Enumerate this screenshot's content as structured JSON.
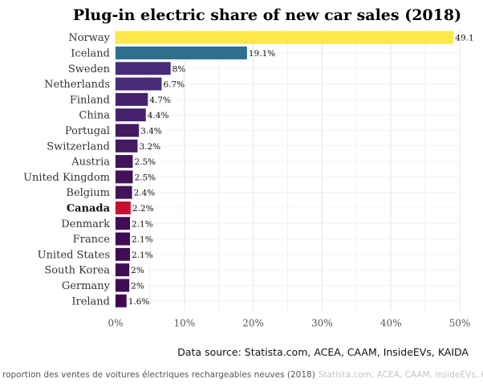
{
  "chart_data": {
    "type": "bar",
    "orientation": "horizontal",
    "title": "Plug-in electric share of new car sales (2018)",
    "categories": [
      "Norway",
      "Iceland",
      "Sweden",
      "Netherlands",
      "Finland",
      "China",
      "Portugal",
      "Switzerland",
      "Austria",
      "United Kingdom",
      "Belgium",
      "Canada",
      "Denmark",
      "France",
      "United States",
      "South Korea",
      "Germany",
      "Ireland"
    ],
    "values": [
      49.1,
      19.1,
      8,
      6.7,
      4.7,
      4.4,
      3.4,
      3.2,
      2.5,
      2.5,
      2.4,
      2.2,
      2.1,
      2.1,
      2.1,
      2,
      2,
      1.6
    ],
    "value_labels": [
      "49.1",
      "19.1%",
      "8%",
      "6.7%",
      "4.7%",
      "4.4%",
      "3.4%",
      "3.2%",
      "2.5%",
      "2.5%",
      "2.4%",
      "2.2%",
      "2.1%",
      "2.1%",
      "2.1%",
      "2%",
      "2%",
      "1.6%"
    ],
    "colors": [
      "#fde84a",
      "#2f6f8e",
      "#482c79",
      "#482c79",
      "#46226e",
      "#46226e",
      "#441a63",
      "#441a63",
      "#42125b",
      "#42125b",
      "#42125b",
      "#c8102e",
      "#400c55",
      "#400c55",
      "#400c55",
      "#400c55",
      "#400c55",
      "#3f0952"
    ],
    "highlight": "Canada",
    "x_ticks": [
      0,
      10,
      20,
      30,
      40,
      50
    ],
    "x_tick_labels": [
      "0%",
      "10%",
      "20%",
      "30%",
      "40%",
      "50%"
    ],
    "xlim": [
      0,
      50
    ],
    "grid": true,
    "source": "Data source: Statista.com, ACEA, CAAM, InsideEVs, KAIDA"
  },
  "caption": {
    "text": "roportion des ventes de voitures électriques rechargeables neuves (2018)",
    "source": "Statista.com; ACEA, CAAM, InsideEVs, KAIDA"
  }
}
